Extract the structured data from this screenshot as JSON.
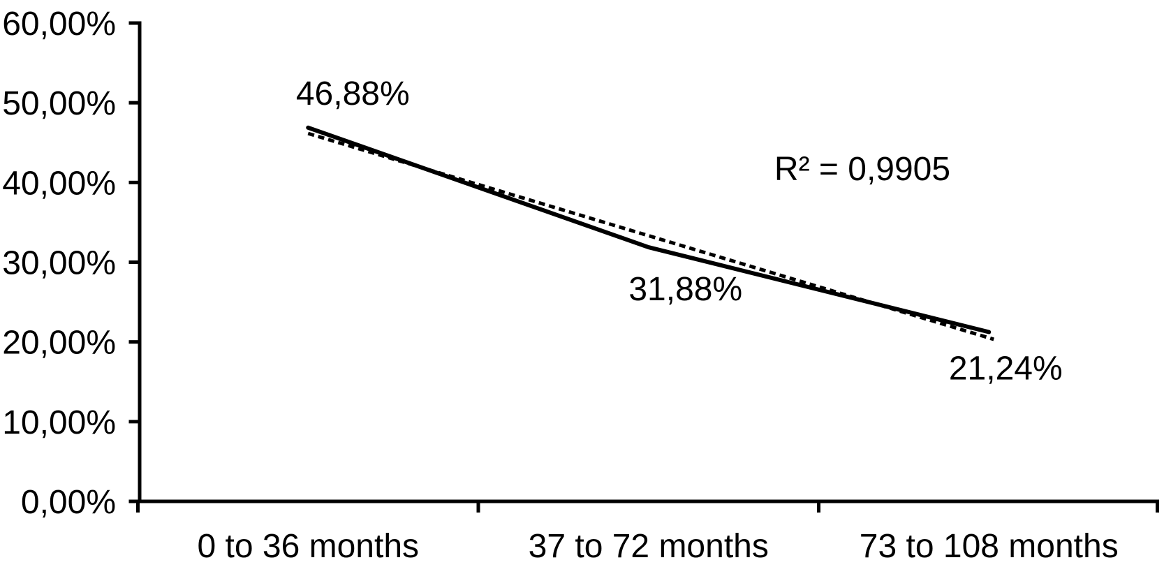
{
  "chart_data": {
    "type": "line",
    "title": "",
    "xlabel": "",
    "ylabel": "",
    "categories": [
      "0 to 36 months",
      "37 to 72 months",
      "73 to 108 months"
    ],
    "series": [
      {
        "name": "observed-percentage",
        "style": "solid",
        "values": [
          46.88,
          31.88,
          21.24
        ],
        "point_labels": [
          "46,88%",
          "31,88%",
          "21,24%"
        ]
      },
      {
        "name": "linear-trendline",
        "style": "dashed",
        "fit": "linear",
        "fitted_values": [
          46.15,
          33.33,
          20.51
        ]
      }
    ],
    "annotation": "R² = 0,9905",
    "ylim": [
      0,
      60
    ],
    "ytick_step": 10,
    "ytick_labels": [
      "0,00%",
      "10,00%",
      "20,00%",
      "30,00%",
      "40,00%",
      "50,00%",
      "60,00%"
    ],
    "grid": false,
    "legend": "none",
    "decimal_separator": ",",
    "line_color": "#000000",
    "background_color": "#ffffff"
  }
}
